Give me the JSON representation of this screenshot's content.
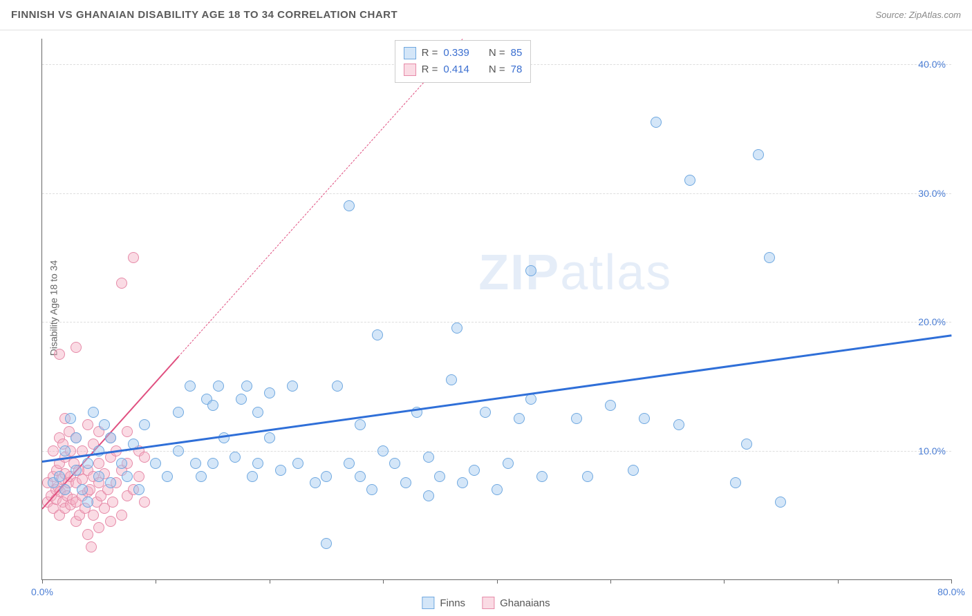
{
  "header": {
    "title": "FINNISH VS GHANAIAN DISABILITY AGE 18 TO 34 CORRELATION CHART",
    "source_label": "Source: ZipAtlas.com"
  },
  "chart": {
    "type": "scatter",
    "y_axis_label": "Disability Age 18 to 34",
    "xlim": [
      0,
      80
    ],
    "ylim": [
      0,
      42
    ],
    "x_ticks": [
      0,
      10,
      20,
      30,
      40,
      50,
      60,
      70,
      80
    ],
    "x_tick_labels": {
      "0": "0.0%",
      "80": "80.0%"
    },
    "y_gridlines": [
      10,
      20,
      30,
      40
    ],
    "y_tick_labels": {
      "10": "10.0%",
      "20": "20.0%",
      "30": "30.0%",
      "40": "40.0%"
    },
    "background_color": "#ffffff",
    "grid_color": "#dddddd",
    "axis_color": "#666666",
    "tick_label_color": "#4a7dd4",
    "point_radius": 8,
    "watermark": {
      "text_bold": "ZIP",
      "text_light": "atlas",
      "color": "rgba(160,190,230,0.28)"
    },
    "series": {
      "finns": {
        "label": "Finns",
        "fill": "rgba(160,200,240,0.45)",
        "stroke": "#6fa8e0",
        "trend_color": "#2f6fd8",
        "trend_width": 3,
        "trend_dash": "solid",
        "trend_start": {
          "x": 0,
          "y": 9.2
        },
        "trend_end": {
          "x": 80,
          "y": 19.0
        },
        "points": [
          {
            "x": 1,
            "y": 7.5
          },
          {
            "x": 1.5,
            "y": 8
          },
          {
            "x": 2,
            "y": 7
          },
          {
            "x": 2,
            "y": 10
          },
          {
            "x": 2.5,
            "y": 12.5
          },
          {
            "x": 3,
            "y": 8.5
          },
          {
            "x": 3,
            "y": 11
          },
          {
            "x": 3.5,
            "y": 7
          },
          {
            "x": 4,
            "y": 9
          },
          {
            "x": 4,
            "y": 6
          },
          {
            "x": 4.5,
            "y": 13
          },
          {
            "x": 5,
            "y": 8
          },
          {
            "x": 5,
            "y": 10
          },
          {
            "x": 5.5,
            "y": 12
          },
          {
            "x": 6,
            "y": 7.5
          },
          {
            "x": 6,
            "y": 11
          },
          {
            "x": 7,
            "y": 9
          },
          {
            "x": 7.5,
            "y": 8
          },
          {
            "x": 8,
            "y": 10.5
          },
          {
            "x": 8.5,
            "y": 7
          },
          {
            "x": 9,
            "y": 12
          },
          {
            "x": 10,
            "y": 9
          },
          {
            "x": 11,
            "y": 8
          },
          {
            "x": 12,
            "y": 13
          },
          {
            "x": 12,
            "y": 10
          },
          {
            "x": 13,
            "y": 15
          },
          {
            "x": 13.5,
            "y": 9
          },
          {
            "x": 14,
            "y": 8
          },
          {
            "x": 14.5,
            "y": 14
          },
          {
            "x": 15,
            "y": 13.5
          },
          {
            "x": 15,
            "y": 9
          },
          {
            "x": 15.5,
            "y": 15
          },
          {
            "x": 16,
            "y": 11
          },
          {
            "x": 17,
            "y": 9.5
          },
          {
            "x": 17.5,
            "y": 14
          },
          {
            "x": 18,
            "y": 15
          },
          {
            "x": 18.5,
            "y": 8
          },
          {
            "x": 19,
            "y": 13
          },
          {
            "x": 19,
            "y": 9
          },
          {
            "x": 20,
            "y": 14.5
          },
          {
            "x": 20,
            "y": 11
          },
          {
            "x": 21,
            "y": 8.5
          },
          {
            "x": 22,
            "y": 15
          },
          {
            "x": 22.5,
            "y": 9
          },
          {
            "x": 24,
            "y": 7.5
          },
          {
            "x": 25,
            "y": 8
          },
          {
            "x": 25,
            "y": 2.8
          },
          {
            "x": 26,
            "y": 15
          },
          {
            "x": 27,
            "y": 9
          },
          {
            "x": 27,
            "y": 29
          },
          {
            "x": 28,
            "y": 8
          },
          {
            "x": 28,
            "y": 12
          },
          {
            "x": 29,
            "y": 7
          },
          {
            "x": 29.5,
            "y": 19
          },
          {
            "x": 30,
            "y": 10
          },
          {
            "x": 31,
            "y": 9
          },
          {
            "x": 32,
            "y": 7.5
          },
          {
            "x": 33,
            "y": 13
          },
          {
            "x": 34,
            "y": 9.5
          },
          {
            "x": 34,
            "y": 6.5
          },
          {
            "x": 35,
            "y": 8
          },
          {
            "x": 36,
            "y": 15.5
          },
          {
            "x": 36.5,
            "y": 19.5
          },
          {
            "x": 37,
            "y": 7.5
          },
          {
            "x": 38,
            "y": 8.5
          },
          {
            "x": 39,
            "y": 13
          },
          {
            "x": 40,
            "y": 7
          },
          {
            "x": 41,
            "y": 9
          },
          {
            "x": 42,
            "y": 12.5
          },
          {
            "x": 43,
            "y": 14
          },
          {
            "x": 43,
            "y": 24
          },
          {
            "x": 44,
            "y": 8
          },
          {
            "x": 47,
            "y": 12.5
          },
          {
            "x": 48,
            "y": 8
          },
          {
            "x": 50,
            "y": 13.5
          },
          {
            "x": 52,
            "y": 8.5
          },
          {
            "x": 53,
            "y": 12.5
          },
          {
            "x": 54,
            "y": 35.5
          },
          {
            "x": 56,
            "y": 12
          },
          {
            "x": 57,
            "y": 31
          },
          {
            "x": 61,
            "y": 7.5
          },
          {
            "x": 62,
            "y": 10.5
          },
          {
            "x": 63,
            "y": 33
          },
          {
            "x": 64,
            "y": 25
          },
          {
            "x": 65,
            "y": 6
          }
        ]
      },
      "ghanaians": {
        "label": "Ghanaians",
        "fill": "rgba(245,175,195,0.45)",
        "stroke": "#e68aa8",
        "trend_color": "#e05080",
        "trend_width": 2.5,
        "trend_dash_solid_end_x": 12,
        "trend_dash": "dashed",
        "trend_start": {
          "x": 0,
          "y": 5.5
        },
        "trend_end": {
          "x": 37,
          "y": 42
        },
        "points": [
          {
            "x": 0.5,
            "y": 6
          },
          {
            "x": 0.5,
            "y": 7.5
          },
          {
            "x": 0.8,
            "y": 6.5
          },
          {
            "x": 1,
            "y": 5.5
          },
          {
            "x": 1,
            "y": 8
          },
          {
            "x": 1,
            "y": 10
          },
          {
            "x": 1.2,
            "y": 7
          },
          {
            "x": 1.2,
            "y": 6.2
          },
          {
            "x": 1.3,
            "y": 8.5
          },
          {
            "x": 1.4,
            "y": 7.2
          },
          {
            "x": 1.5,
            "y": 5
          },
          {
            "x": 1.5,
            "y": 9
          },
          {
            "x": 1.5,
            "y": 11
          },
          {
            "x": 1.5,
            "y": 17.5
          },
          {
            "x": 1.6,
            "y": 6.8
          },
          {
            "x": 1.7,
            "y": 7.8
          },
          {
            "x": 1.8,
            "y": 6
          },
          {
            "x": 1.8,
            "y": 10.5
          },
          {
            "x": 2,
            "y": 5.5
          },
          {
            "x": 2,
            "y": 7
          },
          {
            "x": 2,
            "y": 8.2
          },
          {
            "x": 2,
            "y": 9.5
          },
          {
            "x": 2,
            "y": 12.5
          },
          {
            "x": 2.2,
            "y": 6.5
          },
          {
            "x": 2.3,
            "y": 7.5
          },
          {
            "x": 2.4,
            "y": 11.5
          },
          {
            "x": 2.5,
            "y": 5.8
          },
          {
            "x": 2.5,
            "y": 8
          },
          {
            "x": 2.5,
            "y": 10
          },
          {
            "x": 2.7,
            "y": 6.2
          },
          {
            "x": 2.8,
            "y": 9
          },
          {
            "x": 3,
            "y": 4.5
          },
          {
            "x": 3,
            "y": 6
          },
          {
            "x": 3,
            "y": 7.5
          },
          {
            "x": 3,
            "y": 11
          },
          {
            "x": 3,
            "y": 18
          },
          {
            "x": 3.2,
            "y": 8.5
          },
          {
            "x": 3.3,
            "y": 5
          },
          {
            "x": 3.5,
            "y": 6.5
          },
          {
            "x": 3.5,
            "y": 7.8
          },
          {
            "x": 3.5,
            "y": 10
          },
          {
            "x": 3.8,
            "y": 5.5
          },
          {
            "x": 4,
            "y": 3.5
          },
          {
            "x": 4,
            "y": 6.8
          },
          {
            "x": 4,
            "y": 8.5
          },
          {
            "x": 4,
            "y": 12
          },
          {
            "x": 4.2,
            "y": 7
          },
          {
            "x": 4.3,
            "y": 2.5
          },
          {
            "x": 4.5,
            "y": 5
          },
          {
            "x": 4.5,
            "y": 8
          },
          {
            "x": 4.5,
            "y": 10.5
          },
          {
            "x": 4.8,
            "y": 6
          },
          {
            "x": 5,
            "y": 4
          },
          {
            "x": 5,
            "y": 7.5
          },
          {
            "x": 5,
            "y": 9
          },
          {
            "x": 5,
            "y": 11.5
          },
          {
            "x": 5.2,
            "y": 6.5
          },
          {
            "x": 5.5,
            "y": 5.5
          },
          {
            "x": 5.5,
            "y": 8.2
          },
          {
            "x": 5.8,
            "y": 7
          },
          {
            "x": 6,
            "y": 4.5
          },
          {
            "x": 6,
            "y": 9.5
          },
          {
            "x": 6,
            "y": 11
          },
          {
            "x": 6.2,
            "y": 6
          },
          {
            "x": 6.5,
            "y": 7.5
          },
          {
            "x": 6.5,
            "y": 10
          },
          {
            "x": 7,
            "y": 5
          },
          {
            "x": 7,
            "y": 8.5
          },
          {
            "x": 7,
            "y": 23
          },
          {
            "x": 7.5,
            "y": 6.5
          },
          {
            "x": 7.5,
            "y": 9
          },
          {
            "x": 7.5,
            "y": 11.5
          },
          {
            "x": 8,
            "y": 7
          },
          {
            "x": 8,
            "y": 25
          },
          {
            "x": 8.5,
            "y": 8
          },
          {
            "x": 8.5,
            "y": 10
          },
          {
            "x": 9,
            "y": 6
          },
          {
            "x": 9,
            "y": 9.5
          }
        ]
      }
    },
    "stats_box": {
      "rows": [
        {
          "series": "finns",
          "r_label": "R =",
          "r_value": "0.339",
          "n_label": "N =",
          "n_value": "85"
        },
        {
          "series": "ghanaians",
          "r_label": "R =",
          "r_value": "0.414",
          "n_label": "N =",
          "n_value": "78"
        }
      ]
    }
  }
}
